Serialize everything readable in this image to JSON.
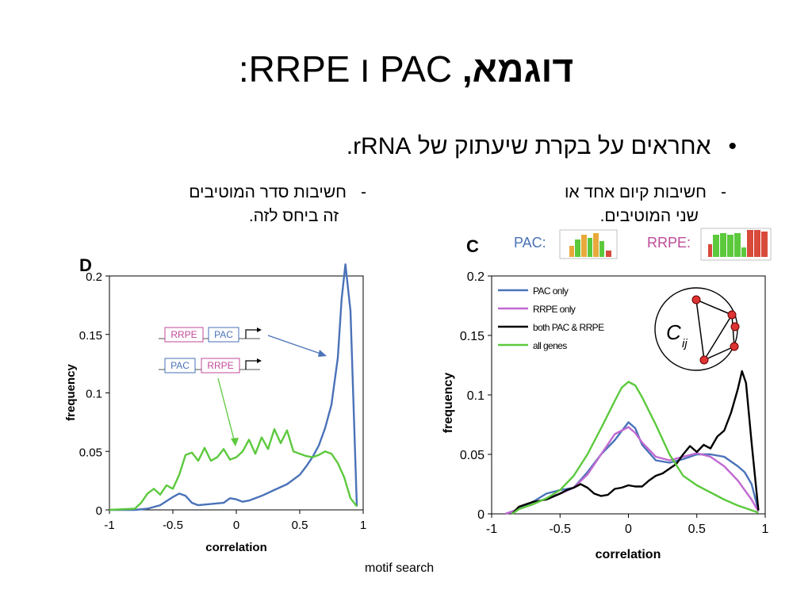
{
  "slide": {
    "title_hebrew": "דוגמא,",
    "title_rest": "PAC ו RRPE:",
    "bullet": "אחראים על בקרת שיעתוק של rRNA.",
    "sub_right": {
      "dash": "-",
      "line1": "חשיבות קיום אחד או",
      "line2": "שני המוטיבים."
    },
    "sub_left": {
      "dash": "-",
      "line1": "חשיבות סדר המוטיבים",
      "line2": "זה ביחס לזה."
    },
    "caption": "motif search"
  },
  "chart_data": [
    {
      "type": "line",
      "panel_label": "D",
      "xlabel": "correlation",
      "ylabel": "frequency",
      "xlim": [
        -1,
        1
      ],
      "ylim": [
        0,
        0.2
      ],
      "xticks": [
        "-1",
        "-0.5",
        "0",
        "0.5",
        "1"
      ],
      "yticks": [
        "0",
        "0.05",
        "0.1",
        "0.15",
        "0.2"
      ],
      "inset_labels": {
        "rrpe": "RRPE",
        "pac": "PAC"
      },
      "series": [
        {
          "color": "#4a72b8",
          "x": [
            -1,
            -0.8,
            -0.7,
            -0.6,
            -0.5,
            -0.45,
            -0.4,
            -0.35,
            -0.3,
            -0.2,
            -0.1,
            -0.05,
            0,
            0.05,
            0.1,
            0.2,
            0.3,
            0.4,
            0.5,
            0.55,
            0.6,
            0.65,
            0.7,
            0.75,
            0.8,
            0.83,
            0.86,
            0.9,
            0.95
          ],
          "y": [
            0,
            0,
            0.001,
            0.004,
            0.011,
            0.014,
            0.012,
            0.006,
            0.004,
            0.005,
            0.006,
            0.01,
            0.009,
            0.007,
            0.008,
            0.012,
            0.017,
            0.022,
            0.03,
            0.037,
            0.045,
            0.055,
            0.07,
            0.09,
            0.13,
            0.18,
            0.21,
            0.17,
            0.003
          ]
        },
        {
          "color": "#5cc93d",
          "x": [
            -1,
            -0.8,
            -0.75,
            -0.7,
            -0.65,
            -0.6,
            -0.55,
            -0.5,
            -0.45,
            -0.4,
            -0.35,
            -0.3,
            -0.25,
            -0.2,
            -0.15,
            -0.1,
            -0.05,
            0,
            0.05,
            0.1,
            0.15,
            0.2,
            0.25,
            0.3,
            0.35,
            0.4,
            0.45,
            0.5,
            0.55,
            0.6,
            0.65,
            0.7,
            0.75,
            0.8,
            0.85,
            0.9,
            0.95
          ],
          "y": [
            0,
            0.001,
            0.006,
            0.014,
            0.018,
            0.013,
            0.021,
            0.018,
            0.03,
            0.047,
            0.049,
            0.042,
            0.053,
            0.042,
            0.045,
            0.052,
            0.043,
            0.045,
            0.05,
            0.06,
            0.048,
            0.062,
            0.052,
            0.069,
            0.057,
            0.068,
            0.05,
            0.048,
            0.046,
            0.045,
            0.047,
            0.05,
            0.048,
            0.04,
            0.028,
            0.01,
            0.003
          ]
        }
      ]
    },
    {
      "type": "line",
      "panel_label": "C",
      "xlabel": "correlation",
      "ylabel": "frequency",
      "xlim": [
        -1,
        1
      ],
      "ylim": [
        0,
        0.2
      ],
      "xticks": [
        "-1",
        "-0.5",
        "0",
        "0.5",
        "1"
      ],
      "yticks": [
        "0",
        "0.05",
        "0.1",
        "0.15",
        "0.2"
      ],
      "logo_labels": {
        "pac": "PAC:",
        "rrpe": "RRPE:"
      },
      "inset_math": {
        "main": "C",
        "sub": "ij"
      },
      "series": [
        {
          "name": "PAC only",
          "color": "#4a72b8",
          "x": [
            -0.9,
            -0.8,
            -0.7,
            -0.6,
            -0.5,
            -0.4,
            -0.3,
            -0.2,
            -0.1,
            0,
            0.05,
            0.1,
            0.2,
            0.3,
            0.4,
            0.5,
            0.6,
            0.7,
            0.8,
            0.85,
            0.9,
            0.95
          ],
          "y": [
            0,
            0.004,
            0.01,
            0.017,
            0.02,
            0.022,
            0.035,
            0.05,
            0.062,
            0.077,
            0.072,
            0.058,
            0.045,
            0.043,
            0.046,
            0.05,
            0.05,
            0.048,
            0.04,
            0.035,
            0.025,
            0.003
          ]
        },
        {
          "name": "RRPE only",
          "color": "#c06ad1",
          "x": [
            -0.9,
            -0.8,
            -0.7,
            -0.6,
            -0.5,
            -0.4,
            -0.3,
            -0.2,
            -0.1,
            0,
            0.05,
            0.1,
            0.2,
            0.3,
            0.4,
            0.5,
            0.6,
            0.7,
            0.8,
            0.85,
            0.9,
            0.95
          ],
          "y": [
            0,
            0.004,
            0.008,
            0.013,
            0.017,
            0.022,
            0.033,
            0.05,
            0.067,
            0.073,
            0.068,
            0.06,
            0.048,
            0.045,
            0.048,
            0.051,
            0.048,
            0.04,
            0.028,
            0.02,
            0.012,
            0.002
          ]
        },
        {
          "name": "both PAC & RRPE",
          "color": "#000000",
          "x": [
            -0.85,
            -0.8,
            -0.7,
            -0.6,
            -0.5,
            -0.45,
            -0.4,
            -0.35,
            -0.3,
            -0.25,
            -0.2,
            -0.15,
            -0.1,
            -0.05,
            0,
            0.05,
            0.1,
            0.15,
            0.2,
            0.25,
            0.3,
            0.35,
            0.4,
            0.45,
            0.5,
            0.55,
            0.6,
            0.65,
            0.7,
            0.75,
            0.8,
            0.83,
            0.86,
            0.9,
            0.95
          ],
          "y": [
            0,
            0.006,
            0.01,
            0.012,
            0.017,
            0.02,
            0.022,
            0.025,
            0.022,
            0.017,
            0.015,
            0.016,
            0.021,
            0.022,
            0.024,
            0.023,
            0.023,
            0.028,
            0.032,
            0.034,
            0.038,
            0.042,
            0.05,
            0.057,
            0.052,
            0.058,
            0.055,
            0.065,
            0.07,
            0.085,
            0.105,
            0.12,
            0.11,
            0.06,
            0.003
          ]
        },
        {
          "name": "all genes",
          "color": "#5cc93d",
          "x": [
            -0.85,
            -0.8,
            -0.7,
            -0.6,
            -0.5,
            -0.4,
            -0.3,
            -0.2,
            -0.1,
            -0.05,
            0,
            0.05,
            0.1,
            0.2,
            0.3,
            0.4,
            0.5,
            0.6,
            0.7,
            0.8,
            0.9,
            0.95
          ],
          "y": [
            0,
            0.004,
            0.008,
            0.013,
            0.02,
            0.032,
            0.05,
            0.072,
            0.095,
            0.106,
            0.111,
            0.108,
            0.098,
            0.075,
            0.05,
            0.032,
            0.024,
            0.018,
            0.012,
            0.007,
            0.003,
            0.001
          ]
        }
      ]
    }
  ]
}
